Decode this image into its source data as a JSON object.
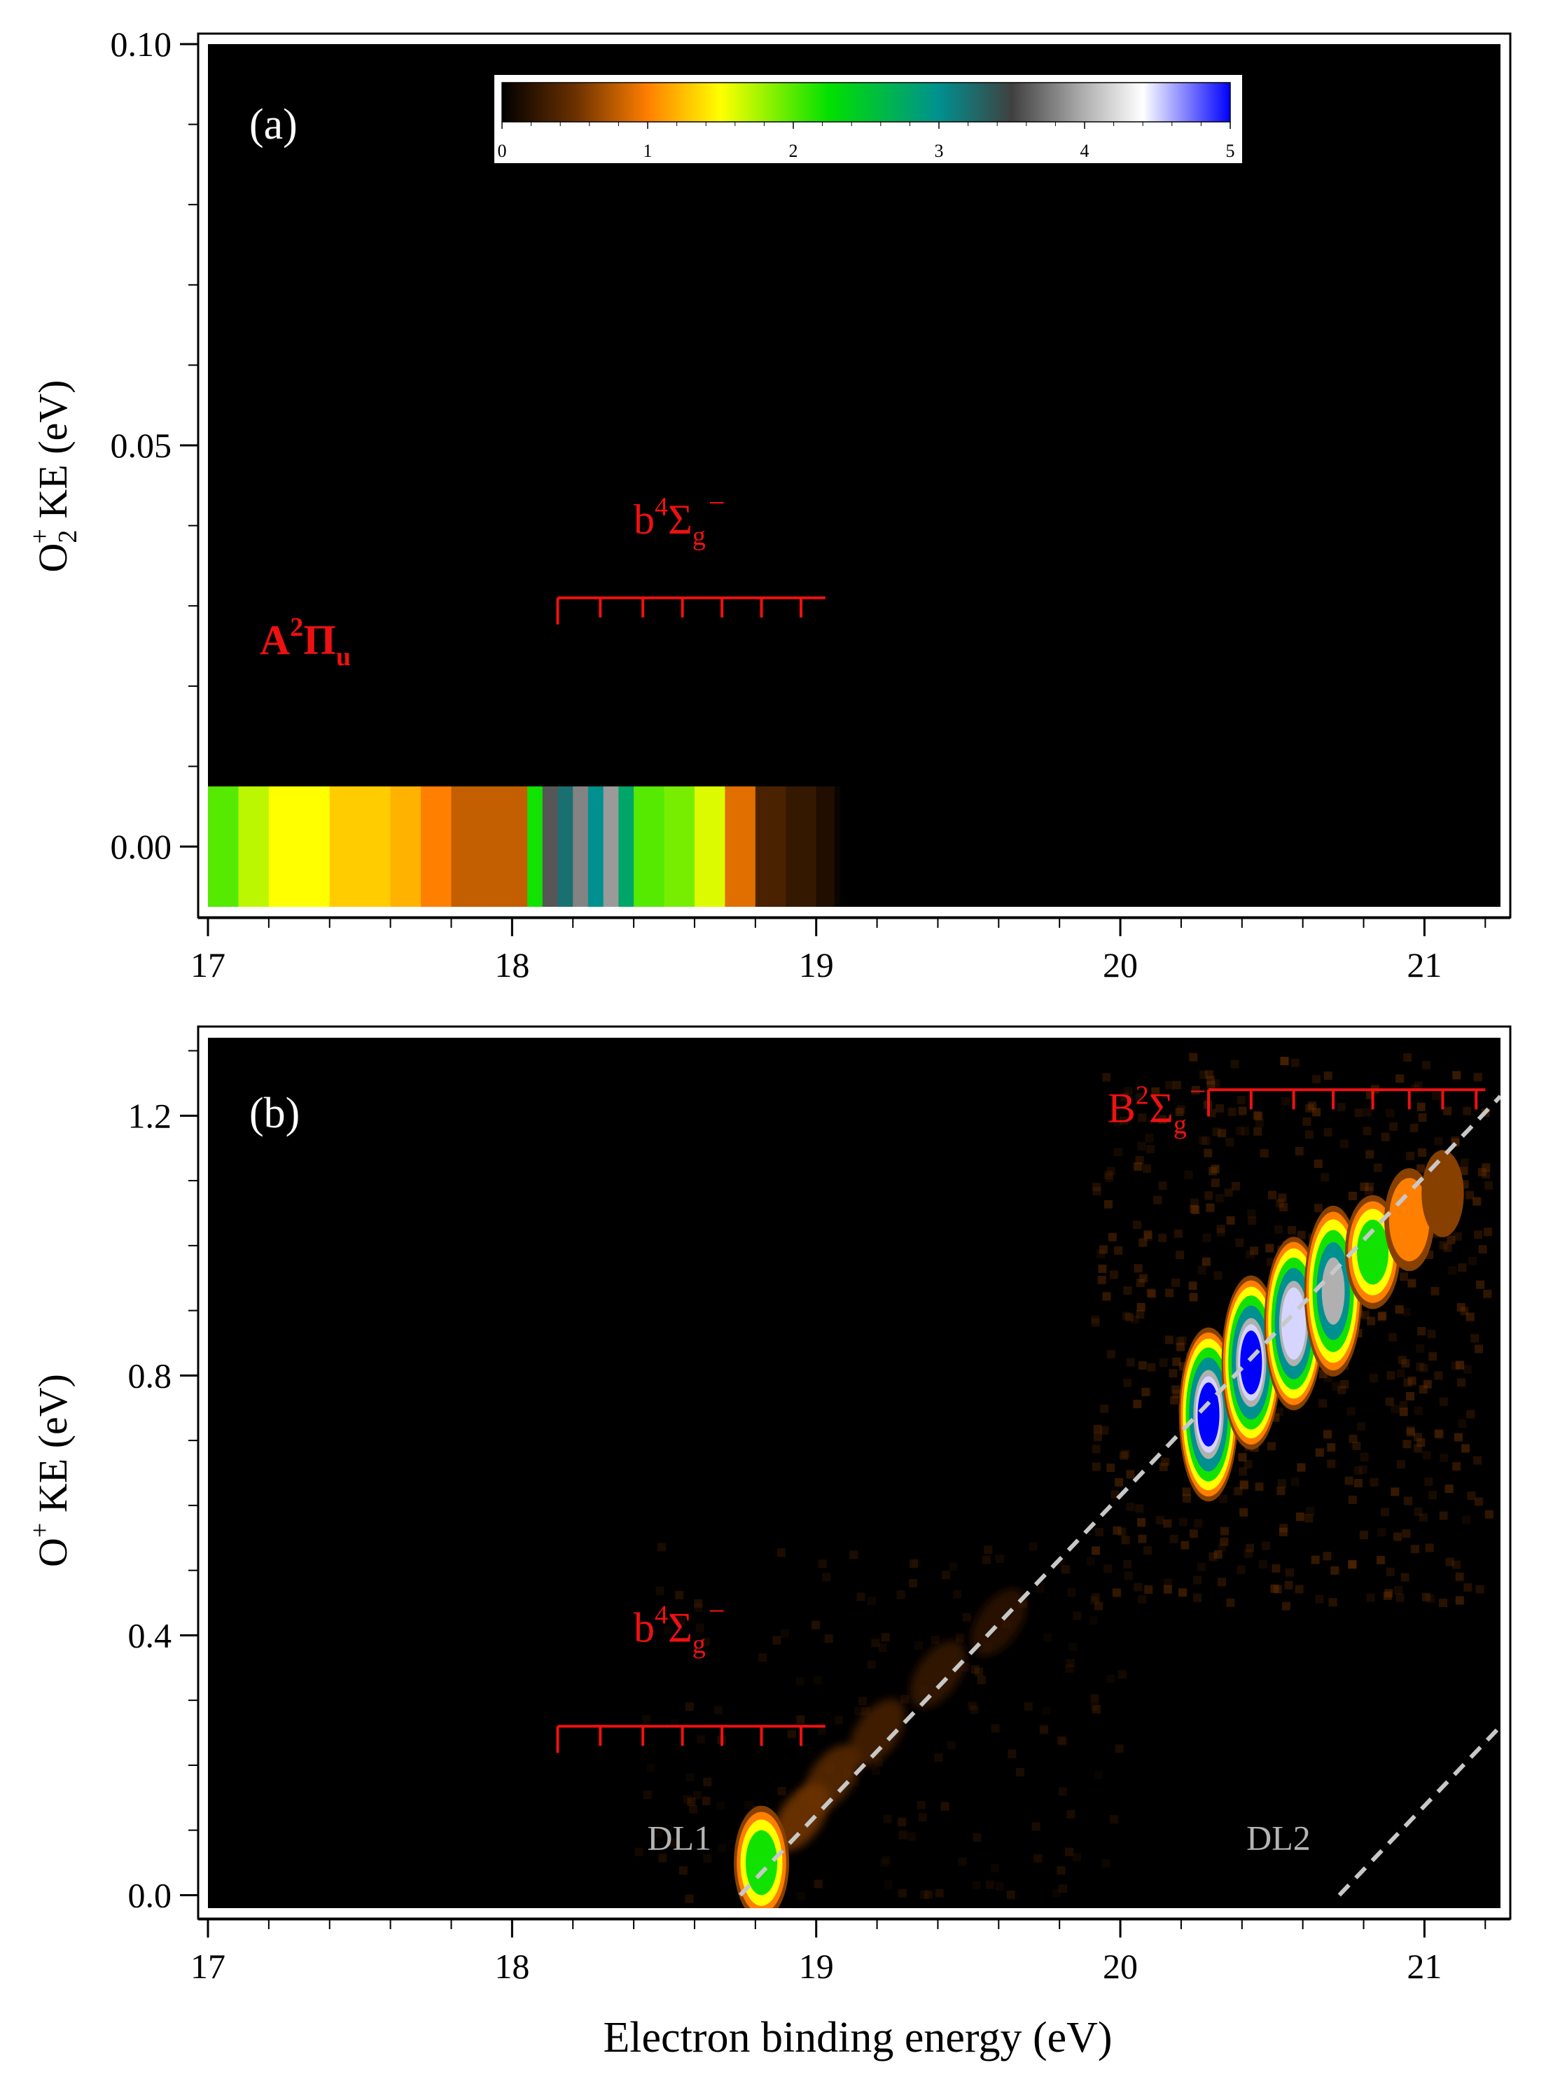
{
  "chart_data": [
    {
      "panel": "(a)",
      "type": "heatmap",
      "xlabel": "",
      "ylabel": {
        "main": "O",
        "sub": "2",
        "sup": "+",
        "rest": " KE (eV)"
      },
      "xlim": [
        17.0,
        21.25
      ],
      "ylim": [
        -0.0075,
        0.1
      ],
      "xticks": [
        "17",
        "18",
        "19",
        "20",
        "21"
      ],
      "yticks": [
        "0.00",
        "0.05",
        "0.10"
      ],
      "colorbar": {
        "range": [
          0,
          5
        ],
        "ticks": [
          "0",
          "1",
          "2",
          "3",
          "4",
          "5"
        ],
        "stops": [
          "#000000",
          "#ff7f00",
          "#ffff00",
          "#00e000",
          "#009090",
          "#b0b0b0",
          "#ffffff",
          "#0000ff"
        ]
      },
      "band": {
        "y_range": [
          -0.0075,
          0.0075
        ],
        "x": [
          17.0,
          17.1,
          17.2,
          17.3,
          17.4,
          17.5,
          17.6,
          17.7,
          17.8,
          17.9,
          18.0,
          18.05,
          18.1,
          18.15,
          18.2,
          18.25,
          18.3,
          18.35,
          18.4,
          18.5,
          18.6,
          18.7,
          18.8,
          18.9,
          19.0,
          19.06
        ],
        "values": [
          2.0,
          1.7,
          1.5,
          1.5,
          1.3,
          1.3,
          1.2,
          1.0,
          0.8,
          0.8,
          0.8,
          2.2,
          3.6,
          3.2,
          3.8,
          3.0,
          3.9,
          2.8,
          2.0,
          1.9,
          1.6,
          0.9,
          0.35,
          0.25,
          0.15,
          0.05
        ]
      },
      "annotations": [
        {
          "label": "A",
          "sup": "2",
          "post": "Π",
          "sub": "u",
          "bold": true,
          "x": 17.32,
          "y": 0.024
        },
        {
          "label": "b",
          "sup": "4",
          "post": "Σ",
          "sub": "g",
          "tail": "−",
          "bold": false,
          "x": 18.55,
          "y": 0.039
        }
      ],
      "combs": [
        {
          "x_start": 18.15,
          "x_end": 19.03,
          "y": 0.031,
          "ticks": [
            18.15,
            18.29,
            18.43,
            18.56,
            18.69,
            18.82,
            18.95
          ]
        }
      ]
    },
    {
      "panel": "(b)",
      "type": "heatmap",
      "xlabel": "Electron binding energy (eV)",
      "ylabel": {
        "main": "O",
        "sub": "",
        "sup": "+",
        "rest": " KE (eV)"
      },
      "xlim": [
        17.0,
        21.25
      ],
      "ylim": [
        -0.02,
        1.32
      ],
      "xticks": [
        "17",
        "18",
        "19",
        "20",
        "21"
      ],
      "yticks": [
        "0.0",
        "0.4",
        "0.8",
        "1.2"
      ],
      "blobs": [
        {
          "x": 18.82,
          "y": 0.05,
          "v": 2.6
        },
        {
          "x": 20.29,
          "y": 0.74,
          "v": 5.0
        },
        {
          "x": 20.43,
          "y": 0.82,
          "v": 5.0
        },
        {
          "x": 20.57,
          "y": 0.88,
          "v": 4.8
        },
        {
          "x": 20.7,
          "y": 0.93,
          "v": 4.0
        },
        {
          "x": 20.83,
          "y": 0.99,
          "v": 2.6
        },
        {
          "x": 20.95,
          "y": 1.04,
          "v": 1.4
        },
        {
          "x": 21.06,
          "y": 1.08,
          "v": 0.7
        }
      ],
      "streak": [
        {
          "x": 18.95,
          "y": 0.12,
          "v": 0.6
        },
        {
          "x": 19.05,
          "y": 0.18,
          "v": 0.5
        },
        {
          "x": 19.2,
          "y": 0.25,
          "v": 0.4
        },
        {
          "x": 19.4,
          "y": 0.34,
          "v": 0.3
        },
        {
          "x": 19.6,
          "y": 0.42,
          "v": 0.25
        }
      ],
      "dashed_lines": [
        {
          "name": "DL1",
          "x1": 18.75,
          "y1": 0.0,
          "x2": 21.25,
          "y2": 1.23
        },
        {
          "name": "DL2",
          "x1": 20.72,
          "y1": 0.0,
          "x2": 21.25,
          "y2": 0.26
        }
      ],
      "line_labels": [
        {
          "text": "DL1",
          "x": 18.55,
          "y": 0.07
        },
        {
          "text": "DL2",
          "x": 20.52,
          "y": 0.07
        }
      ],
      "annotations": [
        {
          "label": "b",
          "sup": "4",
          "post": "Σ",
          "sub": "g",
          "tail": "−",
          "bold": false,
          "x": 18.55,
          "y": 0.39
        },
        {
          "label": "B",
          "sup": "2",
          "post": "Σ",
          "sub": "g",
          "tail": "−",
          "bold": false,
          "x": 20.12,
          "y": 1.19
        }
      ],
      "combs": [
        {
          "x_start": 18.15,
          "x_end": 19.03,
          "y": 0.26,
          "ticks": [
            18.15,
            18.29,
            18.43,
            18.56,
            18.69,
            18.82,
            18.95
          ]
        },
        {
          "x_start": 20.29,
          "x_end": 21.2,
          "y": 1.24,
          "ticks": [
            20.29,
            20.43,
            20.57,
            20.7,
            20.83,
            20.95,
            21.06,
            21.17
          ]
        }
      ]
    }
  ],
  "colors": {
    "annotation": "#ee1111",
    "dashed": "#c8c8c8",
    "line_label": "#b4b4b4"
  }
}
